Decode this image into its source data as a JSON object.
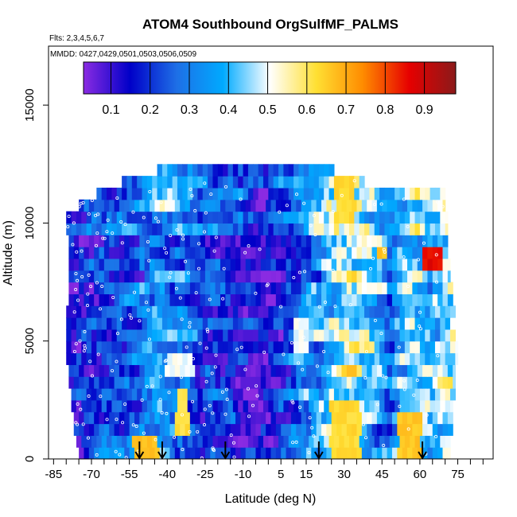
{
  "chart_data": {
    "type": "heatmap",
    "title": "ATOM4 Southbound OrgSulfMF_PALMS",
    "flights_text": "Flts: 2,3,4,5,6,7",
    "dates_text": "MMDD: 0427,0429,0501,0503,0506,0509",
    "xlabel": "Latitude (deg N)",
    "ylabel": "Altitude (m)",
    "xlim": [
      -87,
      89
    ],
    "ylim": [
      0,
      17500
    ],
    "x_ticks": [
      -85,
      -70,
      -55,
      -40,
      -25,
      -10,
      5,
      15,
      30,
      45,
      60,
      75
    ],
    "x_ticks_unlabeled": [
      -80,
      -75,
      -65,
      -60,
      -50,
      -45,
      -35,
      -30,
      -20,
      -15,
      -5,
      0,
      10,
      20,
      25,
      35,
      40,
      50,
      55,
      65,
      70,
      80,
      85
    ],
    "y_ticks": [
      0,
      5000,
      10000,
      15000
    ],
    "colorbar": {
      "range": [
        0.03,
        0.98
      ],
      "ticks": [
        0.1,
        0.2,
        0.3,
        0.4,
        0.5,
        0.6,
        0.7,
        0.8,
        0.9
      ],
      "tick_labels": [
        "0.1",
        "0.2",
        "0.3",
        "0.4",
        "0.5",
        "0.6",
        "0.7",
        "0.8",
        "0.9"
      ],
      "colors": [
        "#8a2be2",
        "#0000c8",
        "#1e6fe6",
        "#00aaff",
        "#ffffff",
        "#ffe033",
        "#ff8c00",
        "#e60000",
        "#8b1a1a"
      ]
    },
    "altitude_bands_m": [
      {
        "alt": [
          0,
          500
        ],
        "lat": [
          -75,
          72
        ]
      },
      {
        "alt": [
          500,
          1000
        ],
        "lat": [
          -76,
          72
        ]
      },
      {
        "alt": [
          1000,
          1500
        ],
        "lat": [
          -77,
          73
        ]
      },
      {
        "alt": [
          1500,
          2000
        ],
        "lat": [
          -77,
          73
        ]
      },
      {
        "alt": [
          2000,
          2500
        ],
        "lat": [
          -78,
          73
        ]
      },
      {
        "alt": [
          2500,
          3000
        ],
        "lat": [
          -78,
          74
        ]
      },
      {
        "alt": [
          3000,
          3500
        ],
        "lat": [
          -79,
          74
        ]
      },
      {
        "alt": [
          3500,
          4000
        ],
        "lat": [
          -79,
          74
        ]
      },
      {
        "alt": [
          4000,
          4500
        ],
        "lat": [
          -80,
          75
        ]
      },
      {
        "alt": [
          4500,
          5000
        ],
        "lat": [
          -80,
          75
        ]
      },
      {
        "alt": [
          5000,
          5500
        ],
        "lat": [
          -80,
          74
        ]
      },
      {
        "alt": [
          5500,
          6000
        ],
        "lat": [
          -80,
          74
        ]
      },
      {
        "alt": [
          6000,
          6500
        ],
        "lat": [
          -80,
          74
        ]
      },
      {
        "alt": [
          6500,
          7000
        ],
        "lat": [
          -79,
          73
        ]
      },
      {
        "alt": [
          7000,
          7500
        ],
        "lat": [
          -79,
          73
        ]
      },
      {
        "alt": [
          7500,
          8000
        ],
        "lat": [
          -79,
          72
        ]
      },
      {
        "alt": [
          8000,
          8500
        ],
        "lat": [
          -79,
          72
        ]
      },
      {
        "alt": [
          8500,
          9000
        ],
        "lat": [
          -79,
          71
        ]
      },
      {
        "alt": [
          9000,
          9500
        ],
        "lat": [
          -79,
          71
        ]
      },
      {
        "alt": [
          9500,
          10000
        ],
        "lat": [
          -80,
          71
        ]
      },
      {
        "alt": [
          10000,
          10500
        ],
        "lat": [
          -80,
          71
        ]
      },
      {
        "alt": [
          10500,
          11000
        ],
        "lat": [
          -75,
          70
        ]
      },
      {
        "alt": [
          11000,
          11500
        ],
        "lat": [
          -68,
          70
        ]
      },
      {
        "alt": [
          11500,
          12000
        ],
        "lat": [
          -58,
          38
        ]
      },
      {
        "alt": [
          12000,
          12500
        ],
        "lat": [
          -44,
          26
        ]
      }
    ],
    "value_anchors": [
      {
        "lat": -80,
        "v": 0.14
      },
      {
        "lat": -72,
        "v": 0.17
      },
      {
        "lat": -62,
        "v": 0.21
      },
      {
        "lat": -52,
        "v": 0.25
      },
      {
        "lat": -44,
        "v": 0.34
      },
      {
        "lat": -36,
        "v": 0.28
      },
      {
        "lat": -27,
        "v": 0.22
      },
      {
        "lat": -18,
        "v": 0.2
      },
      {
        "lat": -8,
        "v": 0.16
      },
      {
        "lat": 0,
        "v": 0.14
      },
      {
        "lat": 8,
        "v": 0.2
      },
      {
        "lat": 16,
        "v": 0.32
      },
      {
        "lat": 24,
        "v": 0.4
      },
      {
        "lat": 32,
        "v": 0.48
      },
      {
        "lat": 40,
        "v": 0.4
      },
      {
        "lat": 48,
        "v": 0.3
      },
      {
        "lat": 56,
        "v": 0.45
      },
      {
        "lat": 64,
        "v": 0.38
      },
      {
        "lat": 72,
        "v": 0.46
      }
    ],
    "hotspots": [
      {
        "lat": [
          -53,
          -44
        ],
        "alt": [
          0,
          1100
        ],
        "v": 0.66
      },
      {
        "lat": [
          -36,
          -32
        ],
        "alt": [
          1000,
          2800
        ],
        "v": 0.62
      },
      {
        "lat": [
          25,
          36
        ],
        "alt": [
          0,
          2500
        ],
        "v": 0.63
      },
      {
        "lat": [
          52,
          60
        ],
        "alt": [
          0,
          2000
        ],
        "v": 0.66
      },
      {
        "lat": [
          27,
          33
        ],
        "alt": [
          10000,
          11800
        ],
        "v": 0.63
      },
      {
        "lat": [
          62,
          68
        ],
        "alt": [
          8200,
          8800
        ],
        "v": 0.86
      },
      {
        "lat": [
          44,
          47
        ],
        "alt": [
          8300,
          8800
        ],
        "v": 0.66
      },
      {
        "lat": [
          -8,
          -3
        ],
        "alt": [
          3200,
          4500
        ],
        "v": 0.06
      },
      {
        "lat": [
          -7,
          -4
        ],
        "alt": [
          500,
          2600
        ],
        "v": 0.07
      },
      {
        "lat": [
          -40,
          -30
        ],
        "alt": [
          3700,
          4600
        ],
        "v": 0.5
      },
      {
        "lat": [
          10,
          16
        ],
        "alt": [
          4500,
          5800
        ],
        "v": 0.5
      },
      {
        "lat": [
          35,
          46
        ],
        "alt": [
          6800,
          7600
        ],
        "v": 0.52
      }
    ],
    "arrows_lat": [
      -51,
      -42,
      -17,
      20,
      61
    ]
  }
}
